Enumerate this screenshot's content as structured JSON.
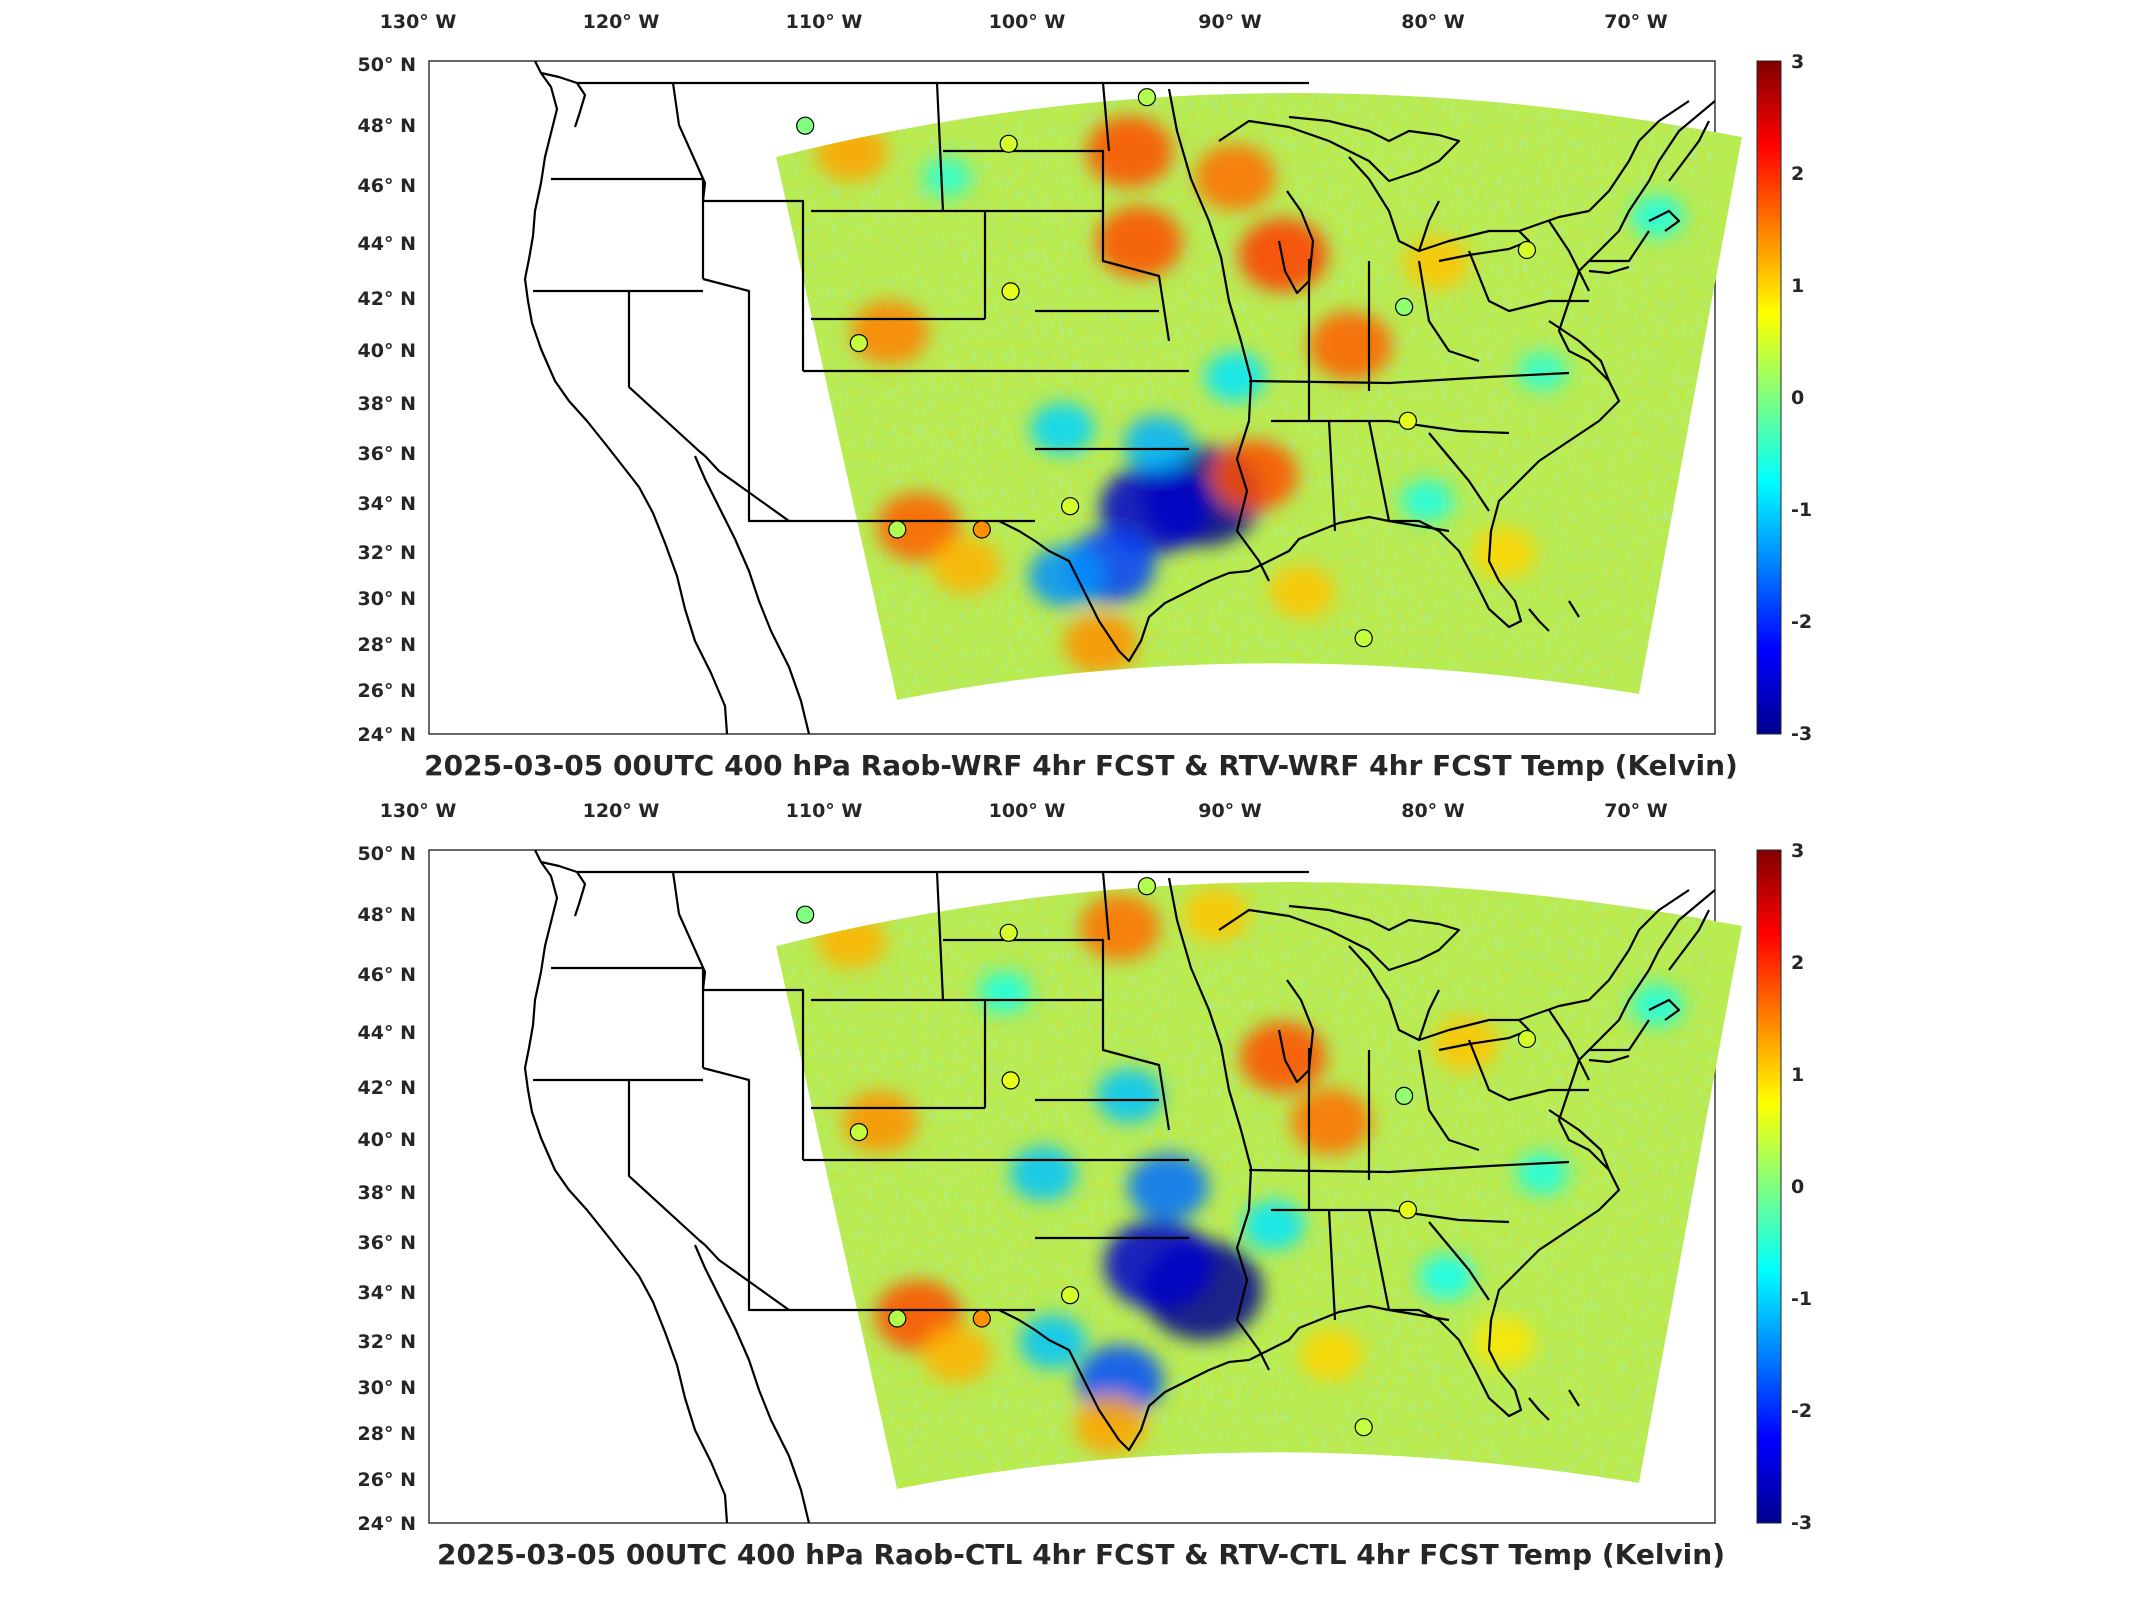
{
  "colors": {
    "land_outline": "#000000",
    "domain_base": "#b8ec50",
    "colormap": [
      "#00008f",
      "#0000ff",
      "#0080ff",
      "#00ffff",
      "#80ff80",
      "#ffff00",
      "#ff8000",
      "#ff0000",
      "#800000"
    ]
  },
  "icons": {
    "station_marker": "circle-marker-icon"
  },
  "panels": [
    {
      "title": "2025-03-05 00UTC 400 hPa Raob-WRF 4hr FCST & RTV-WRF 4hr FCST Temp (Kelvin)",
      "lon_ticks": [
        "130° W",
        "120° W",
        "110° W",
        "100° W",
        "90° W",
        "80° W",
        "70° W"
      ],
      "lat_ticks": [
        "50° N",
        "48° N",
        "46° N",
        "44° N",
        "42° N",
        "40° N",
        "38° N",
        "36° N",
        "34° N",
        "32° N",
        "30° N",
        "28° N",
        "26° N",
        "24° N"
      ],
      "colorbar_ticks": [
        "3",
        "2",
        "1",
        "0",
        "-1",
        "-2",
        "-3"
      ]
    },
    {
      "title": "2025-03-05 00UTC 400 hPa Raob-CTL 4hr FCST & RTV-CTL 4hr FCST Temp (Kelvin)",
      "lon_ticks": [
        "130° W",
        "120° W",
        "110° W",
        "100° W",
        "90° W",
        "80° W",
        "70° W"
      ],
      "lat_ticks": [
        "50° N",
        "48° N",
        "46° N",
        "44° N",
        "42° N",
        "40° N",
        "38° N",
        "36° N",
        "34° N",
        "32° N",
        "30° N",
        "28° N",
        "26° N",
        "24° N"
      ],
      "colorbar_ticks": [
        "3",
        "2",
        "1",
        "0",
        "-1",
        "-2",
        "-3"
      ]
    }
  ],
  "map_data": {
    "projection": "equirectangular",
    "lon_range": [
      -131,
      -64
    ],
    "lat_range": [
      24,
      50
    ],
    "colorbar_range": [
      -3,
      3
    ],
    "stations": [
      {
        "lon": -111.4,
        "lat": 47.5,
        "value": 0.0
      },
      {
        "lon": -100.8,
        "lat": 46.8,
        "value": 0.5
      },
      {
        "lon": -93.6,
        "lat": 48.6,
        "value": 0.3
      },
      {
        "lon": -100.7,
        "lat": 41.1,
        "value": 0.6
      },
      {
        "lon": -108.6,
        "lat": 39.1,
        "value": 0.4
      },
      {
        "lon": -106.6,
        "lat": 31.9,
        "value": 0.3
      },
      {
        "lon": -102.2,
        "lat": 31.9,
        "value": 1.4
      },
      {
        "lon": -97.6,
        "lat": 32.8,
        "value": 0.5
      },
      {
        "lon": -80.2,
        "lat": 40.5,
        "value": 0.1
      },
      {
        "lon": -73.8,
        "lat": 42.7,
        "value": 0.5
      },
      {
        "lon": -80.0,
        "lat": 36.1,
        "value": 0.6
      },
      {
        "lon": -82.3,
        "lat": 27.7,
        "value": 0.4
      }
    ],
    "anomalies": [
      [
        {
          "lon": -90.7,
          "lat": 33.2,
          "value": -3.0
        },
        {
          "lon": -93.2,
          "lat": 32.7,
          "value": -2.6
        },
        {
          "lon": -95.5,
          "lat": 30.5,
          "value": -1.9
        },
        {
          "lon": -97.8,
          "lat": 30.1,
          "value": -1.4
        },
        {
          "lon": -93.0,
          "lat": 35.2,
          "value": -1.2
        },
        {
          "lon": -98.0,
          "lat": 35.8,
          "value": -1.0
        },
        {
          "lon": -89.0,
          "lat": 37.8,
          "value": -0.9
        },
        {
          "lon": -104.0,
          "lat": 45.5,
          "value": -0.5
        },
        {
          "lon": -79.0,
          "lat": 33.0,
          "value": -0.6
        },
        {
          "lon": -73.0,
          "lat": 38.0,
          "value": -0.5
        },
        {
          "lon": -67.0,
          "lat": 44.0,
          "value": -0.6
        },
        {
          "lon": -86.5,
          "lat": 42.5,
          "value": 1.9
        },
        {
          "lon": -94.0,
          "lat": 43.0,
          "value": 1.8
        },
        {
          "lon": -94.5,
          "lat": 46.5,
          "value": 1.8
        },
        {
          "lon": -83.0,
          "lat": 39.0,
          "value": 1.7
        },
        {
          "lon": -88.0,
          "lat": 34.0,
          "value": 1.8
        },
        {
          "lon": -89.0,
          "lat": 45.5,
          "value": 1.6
        },
        {
          "lon": -105.5,
          "lat": 32.0,
          "value": 1.7
        },
        {
          "lon": -103.0,
          "lat": 30.5,
          "value": 1.2
        },
        {
          "lon": -107.0,
          "lat": 39.5,
          "value": 1.5
        },
        {
          "lon": -96.0,
          "lat": 27.5,
          "value": 1.4
        },
        {
          "lon": -85.5,
          "lat": 29.5,
          "value": 1.1
        },
        {
          "lon": -78.5,
          "lat": 42.2,
          "value": 1.1
        },
        {
          "lon": -109.0,
          "lat": 46.5,
          "value": 1.3
        },
        {
          "lon": -75.0,
          "lat": 31.0,
          "value": 1.0
        }
      ],
      [
        {
          "lon": -90.7,
          "lat": 33.0,
          "value": -3.0
        },
        {
          "lon": -93.0,
          "lat": 34.0,
          "value": -2.6
        },
        {
          "lon": -95.0,
          "lat": 29.5,
          "value": -1.8
        },
        {
          "lon": -98.5,
          "lat": 31.0,
          "value": -1.1
        },
        {
          "lon": -92.5,
          "lat": 37.0,
          "value": -1.6
        },
        {
          "lon": -94.5,
          "lat": 40.5,
          "value": -1.1
        },
        {
          "lon": -99.0,
          "lat": 37.5,
          "value": -1.1
        },
        {
          "lon": -87.0,
          "lat": 35.5,
          "value": -0.9
        },
        {
          "lon": -101.0,
          "lat": 44.5,
          "value": -0.6
        },
        {
          "lon": -78.0,
          "lat": 33.5,
          "value": -0.7
        },
        {
          "lon": -73.0,
          "lat": 37.5,
          "value": -0.6
        },
        {
          "lon": -67.0,
          "lat": 44.0,
          "value": -0.6
        },
        {
          "lon": -86.5,
          "lat": 42.0,
          "value": 1.8
        },
        {
          "lon": -84.0,
          "lat": 39.5,
          "value": 1.6
        },
        {
          "lon": -95.0,
          "lat": 47.0,
          "value": 1.6
        },
        {
          "lon": -105.5,
          "lat": 32.0,
          "value": 1.8
        },
        {
          "lon": -107.5,
          "lat": 39.5,
          "value": 1.4
        },
        {
          "lon": -103.5,
          "lat": 30.5,
          "value": 1.2
        },
        {
          "lon": -95.5,
          "lat": 27.8,
          "value": 1.3
        },
        {
          "lon": -84.0,
          "lat": 30.5,
          "value": 1.0
        },
        {
          "lon": -77.0,
          "lat": 42.5,
          "value": 1.1
        },
        {
          "lon": -109.0,
          "lat": 46.5,
          "value": 1.2
        },
        {
          "lon": -90.0,
          "lat": 47.5,
          "value": 1.1
        },
        {
          "lon": -75.0,
          "lat": 31.0,
          "value": 0.9
        }
      ]
    ]
  }
}
